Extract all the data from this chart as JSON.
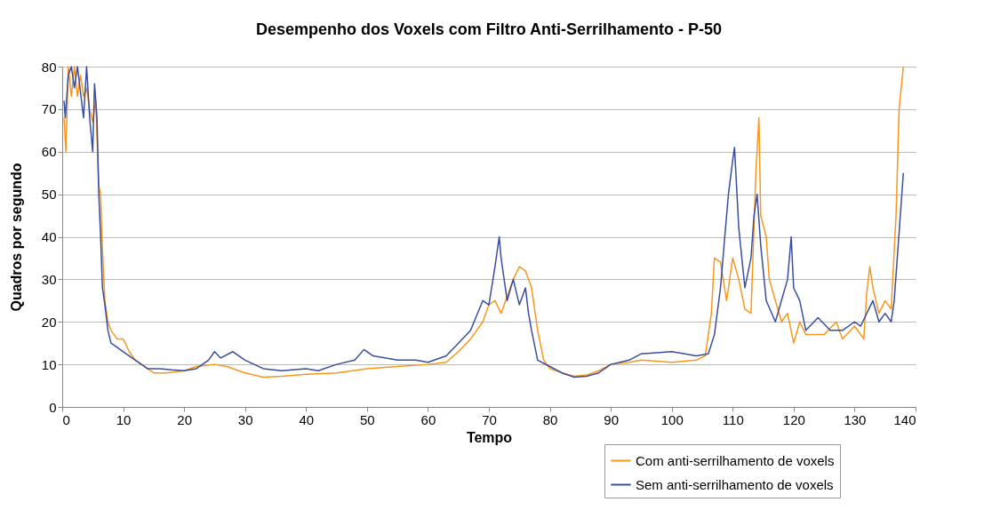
{
  "chart_data": {
    "type": "line",
    "title": "Desempenho dos Voxels com Filtro Anti-Serrilhamento - P-50",
    "xlabel": "Tempo",
    "ylabel": "Quadros por segundo",
    "xlim": [
      0,
      140
    ],
    "xticks": [
      0,
      10,
      20,
      30,
      40,
      50,
      60,
      70,
      80,
      90,
      100,
      110,
      120,
      130,
      140
    ],
    "ylim": [
      0,
      80
    ],
    "yticks": [
      0,
      10,
      20,
      30,
      40,
      50,
      60,
      70,
      80
    ],
    "grid": "y",
    "legend": "bottom right",
    "marker": "none",
    "line_style": "solid",
    "series": [
      {
        "name": "Com anti-serrilhamento de voxels",
        "color": "#f7971e",
        "x": [
          0.3,
          0.6,
          1,
          1.5,
          2,
          2.5,
          3,
          3.5,
          4,
          4.5,
          5,
          5.5,
          6,
          6.3,
          6.6,
          7,
          7.5,
          8,
          9,
          10,
          11,
          12,
          13,
          14,
          15,
          17,
          20,
          22,
          25,
          27,
          30,
          33,
          36,
          40,
          45,
          50,
          55,
          60,
          63,
          65,
          67,
          69,
          70,
          71,
          72,
          73,
          74,
          75,
          76,
          77,
          78,
          79,
          80,
          82,
          84,
          86,
          88,
          90,
          93,
          95,
          100,
          104,
          105.5,
          106.5,
          107,
          108,
          109,
          110,
          111,
          112,
          113,
          113.8,
          114.3,
          114.6,
          115.5,
          116,
          117,
          118,
          119,
          120,
          121,
          122,
          125,
          127,
          128,
          130,
          131.5,
          132,
          132.5,
          133,
          134,
          135,
          136,
          136.8,
          137.3,
          138
        ],
        "values": [
          68,
          60,
          80,
          73,
          80,
          73,
          78,
          73,
          75,
          70,
          67,
          72,
          52,
          50,
          37,
          25,
          20,
          18,
          16,
          16,
          13,
          11,
          10,
          9,
          8,
          8,
          8.5,
          9.5,
          10,
          9.5,
          8,
          7,
          7.2,
          7.7,
          8,
          9,
          9.5,
          10,
          10.5,
          13,
          16,
          20,
          24,
          25,
          22,
          26,
          30,
          33,
          32,
          28,
          18,
          11,
          9,
          8,
          7.2,
          7.5,
          8.5,
          10,
          10.5,
          11,
          10.5,
          11,
          12,
          22,
          35,
          34,
          25,
          35,
          30,
          23,
          22,
          55,
          68,
          45,
          40,
          30,
          25,
          20,
          22,
          15,
          20,
          17,
          17,
          20,
          16,
          19,
          16,
          27,
          33,
          28,
          22,
          25,
          23,
          45,
          70,
          80
        ]
      },
      {
        "name": "Sem anti-serrilhamento de voxels",
        "color": "#3a4ea0",
        "x": [
          0.3,
          0.5,
          1,
          1.5,
          2,
          2.5,
          3,
          3.5,
          4,
          4.5,
          5,
          5.3,
          5.7,
          6,
          6.3,
          6.6,
          7,
          7.5,
          8,
          9,
          10,
          11,
          12,
          14,
          16,
          18,
          20,
          22,
          24,
          25,
          26,
          28,
          30,
          33,
          36,
          40,
          42,
          45,
          48,
          49.5,
          51,
          55,
          58,
          60,
          63,
          65,
          67,
          69,
          70,
          71,
          71.7,
          72,
          73,
          74,
          75,
          76,
          76.5,
          77,
          78,
          80,
          82,
          84,
          86,
          88,
          90,
          93,
          95,
          100,
          104,
          106,
          107,
          108,
          108.7,
          109.3,
          110,
          110.3,
          111,
          112,
          113,
          113.5,
          114,
          114.6,
          115.5,
          117,
          118,
          119,
          119.6,
          120,
          121,
          122,
          124,
          126,
          128,
          130,
          131,
          132,
          133,
          134,
          135,
          136,
          136.5,
          137,
          137.5,
          138
        ],
        "values": [
          72,
          68,
          78,
          80,
          75,
          80,
          74,
          68,
          80,
          68,
          60,
          76,
          68,
          50,
          40,
          28,
          24,
          18,
          15,
          14,
          13,
          12,
          11,
          9,
          9,
          8.7,
          8.5,
          9,
          11,
          13,
          11.5,
          13,
          11,
          9,
          8.5,
          9,
          8.5,
          10,
          11,
          13.5,
          12,
          11,
          11,
          10.5,
          12,
          15,
          18,
          25,
          24,
          33,
          40,
          35,
          25,
          30,
          24,
          28,
          22,
          18,
          11,
          9.5,
          8,
          7,
          7.2,
          8,
          10,
          11,
          12.5,
          13,
          12,
          12.5,
          17,
          28,
          40,
          50,
          58,
          61,
          42,
          28,
          35,
          45,
          50,
          38,
          25,
          20,
          25,
          30,
          40,
          28,
          25,
          18,
          21,
          18,
          18,
          20,
          19,
          22,
          25,
          20,
          22,
          20,
          25,
          35,
          45,
          55
        ]
      }
    ]
  }
}
